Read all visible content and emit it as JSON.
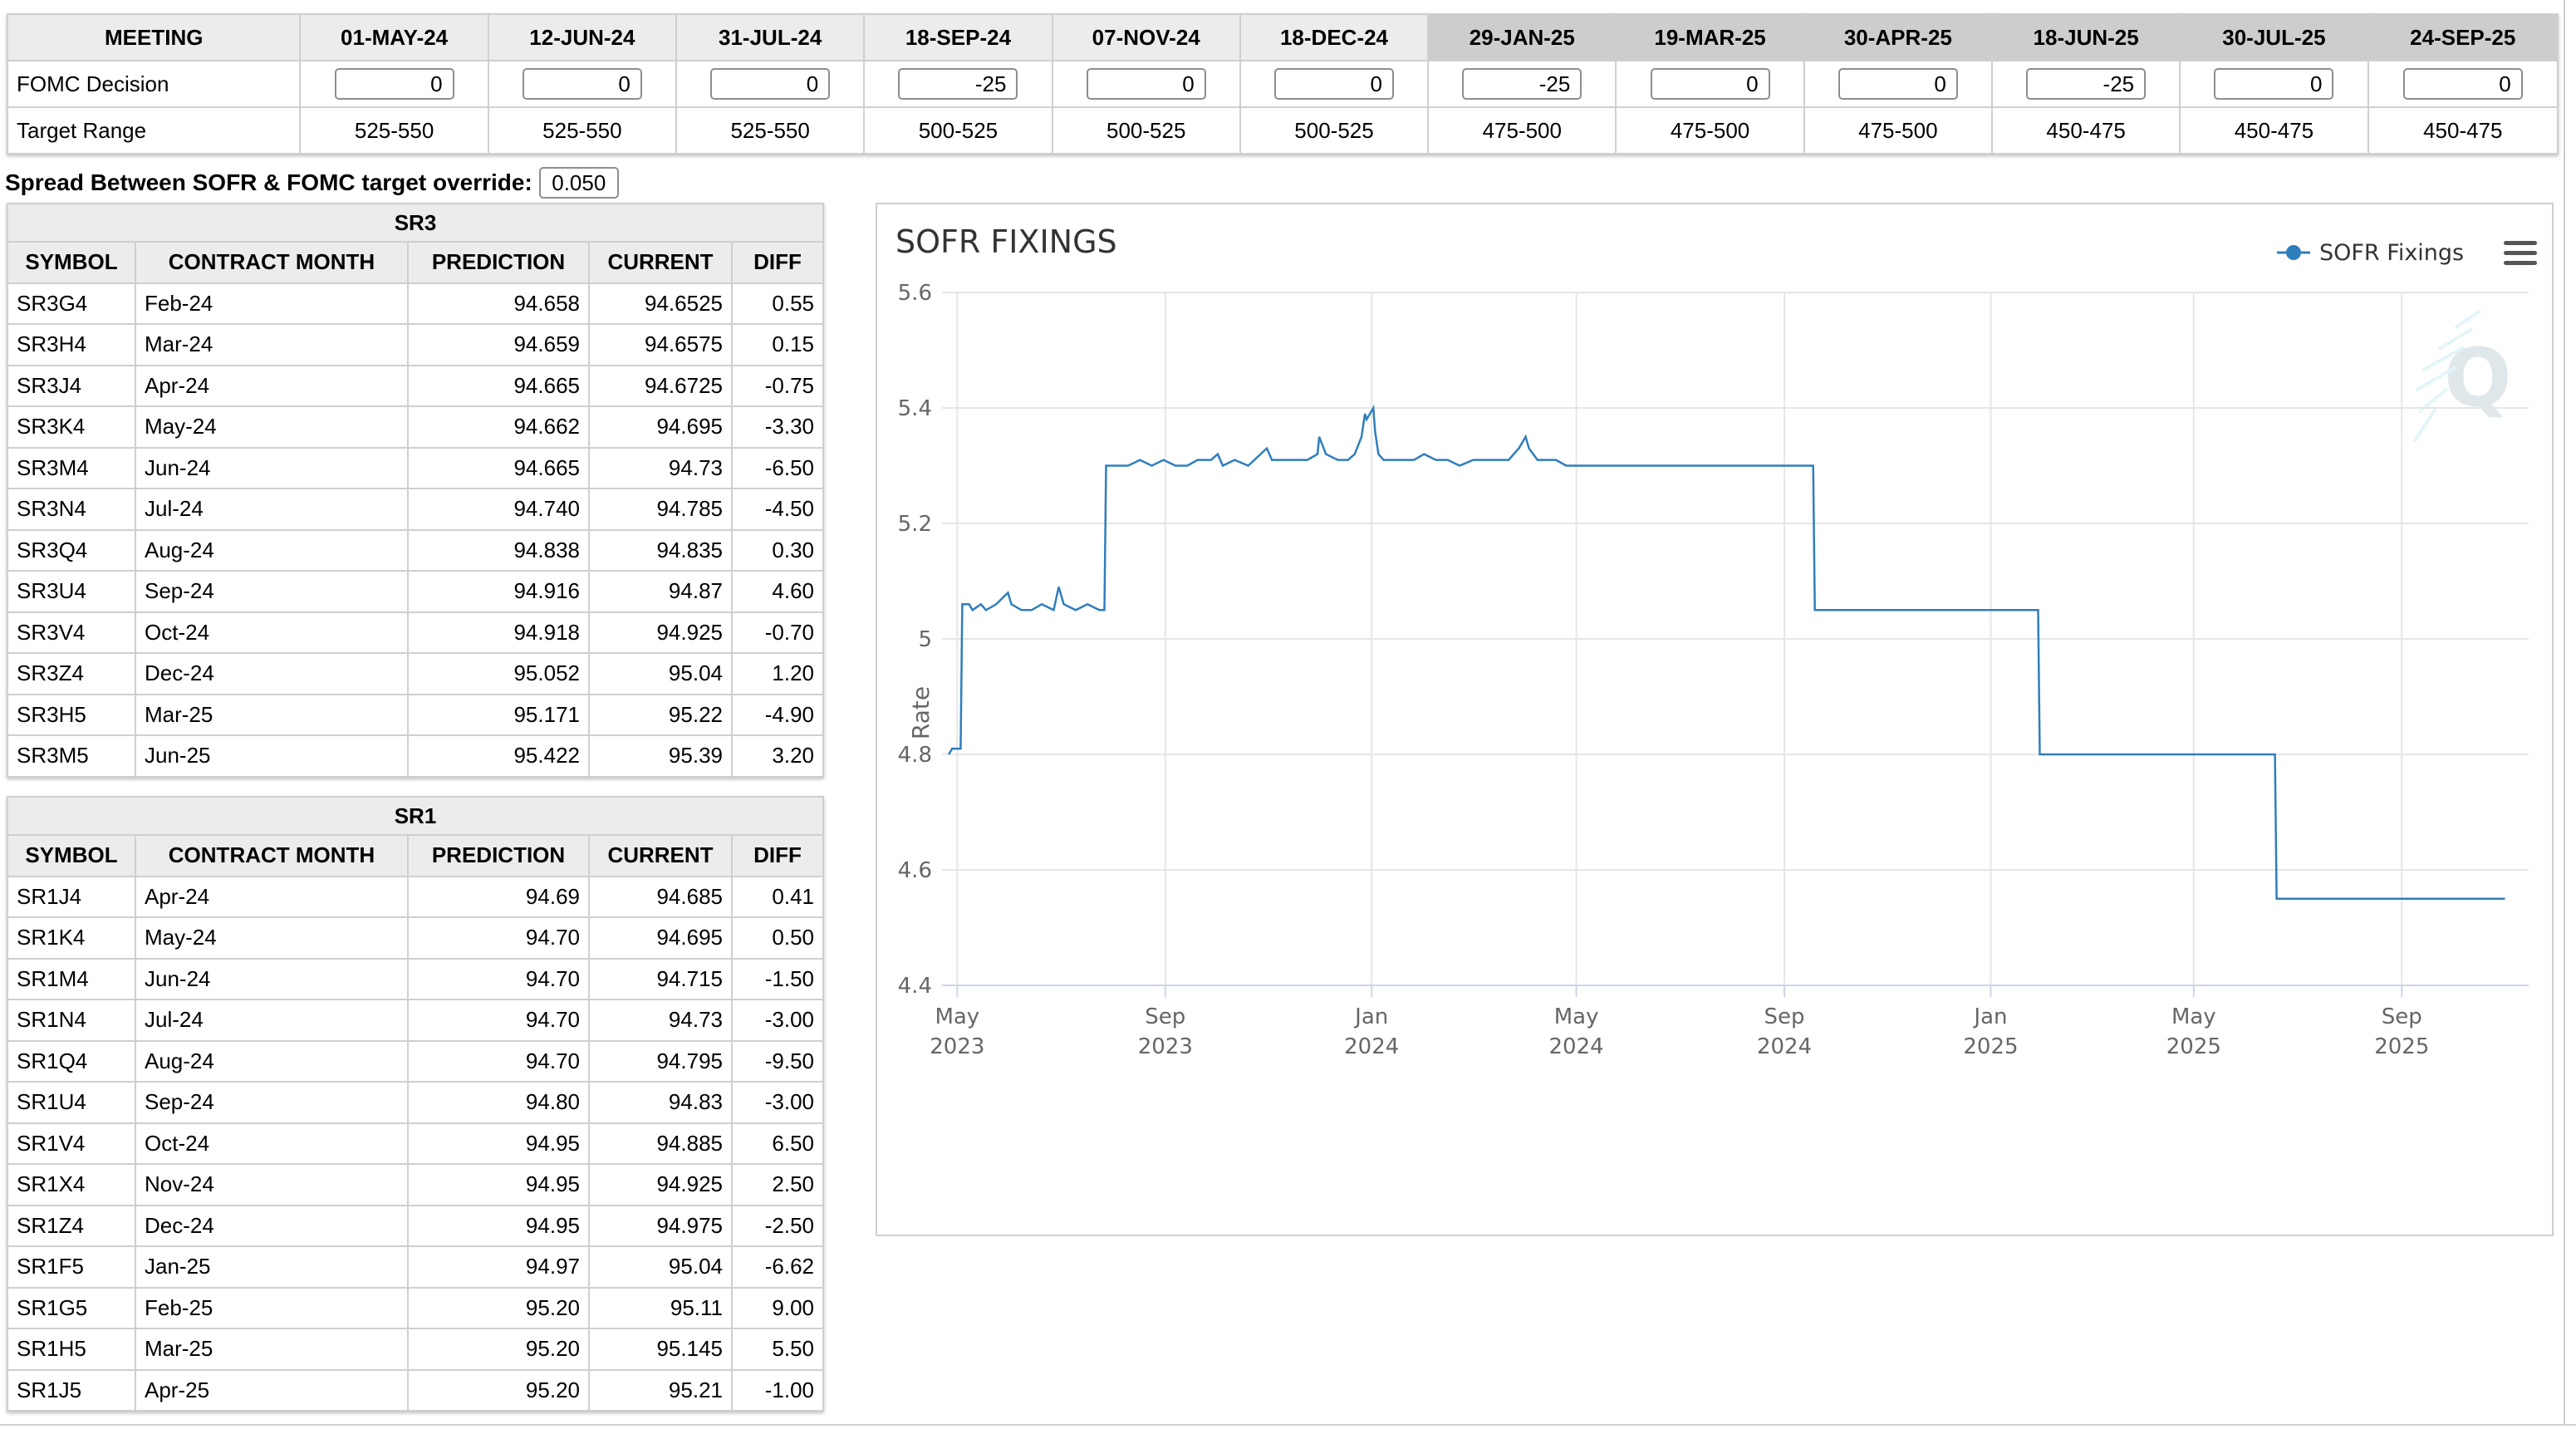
{
  "fomc": {
    "header_label": "MEETING",
    "decision_label": "FOMC Decision",
    "range_label": "Target Range",
    "meetings": [
      {
        "date": "01-MAY-24",
        "decision": "0",
        "range": "525-550",
        "future": false
      },
      {
        "date": "12-JUN-24",
        "decision": "0",
        "range": "525-550",
        "future": false
      },
      {
        "date": "31-JUL-24",
        "decision": "0",
        "range": "525-550",
        "future": false
      },
      {
        "date": "18-SEP-24",
        "decision": "-25",
        "range": "500-525",
        "future": false
      },
      {
        "date": "07-NOV-24",
        "decision": "0",
        "range": "500-525",
        "future": false
      },
      {
        "date": "18-DEC-24",
        "decision": "0",
        "range": "500-525",
        "future": false
      },
      {
        "date": "29-JAN-25",
        "decision": "-25",
        "range": "475-500",
        "future": true
      },
      {
        "date": "19-MAR-25",
        "decision": "0",
        "range": "475-500",
        "future": true
      },
      {
        "date": "30-APR-25",
        "decision": "0",
        "range": "475-500",
        "future": true
      },
      {
        "date": "18-JUN-25",
        "decision": "-25",
        "range": "450-475",
        "future": true
      },
      {
        "date": "30-JUL-25",
        "decision": "0",
        "range": "450-475",
        "future": true
      },
      {
        "date": "24-SEP-25",
        "decision": "0",
        "range": "450-475",
        "future": true
      }
    ]
  },
  "spread": {
    "label": "Spread Between SOFR & FOMC target override:",
    "value": "0.050"
  },
  "columns": [
    "SYMBOL",
    "CONTRACT MONTH",
    "PREDICTION",
    "CURRENT",
    "DIFF"
  ],
  "sr3": {
    "title": "SR3",
    "rows": [
      [
        "SR3G4",
        "Feb-24",
        "94.658",
        "94.6525",
        "0.55"
      ],
      [
        "SR3H4",
        "Mar-24",
        "94.659",
        "94.6575",
        "0.15"
      ],
      [
        "SR3J4",
        "Apr-24",
        "94.665",
        "94.6725",
        "-0.75"
      ],
      [
        "SR3K4",
        "May-24",
        "94.662",
        "94.695",
        "-3.30"
      ],
      [
        "SR3M4",
        "Jun-24",
        "94.665",
        "94.73",
        "-6.50"
      ],
      [
        "SR3N4",
        "Jul-24",
        "94.740",
        "94.785",
        "-4.50"
      ],
      [
        "SR3Q4",
        "Aug-24",
        "94.838",
        "94.835",
        "0.30"
      ],
      [
        "SR3U4",
        "Sep-24",
        "94.916",
        "94.87",
        "4.60"
      ],
      [
        "SR3V4",
        "Oct-24",
        "94.918",
        "94.925",
        "-0.70"
      ],
      [
        "SR3Z4",
        "Dec-24",
        "95.052",
        "95.04",
        "1.20"
      ],
      [
        "SR3H5",
        "Mar-25",
        "95.171",
        "95.22",
        "-4.90"
      ],
      [
        "SR3M5",
        "Jun-25",
        "95.422",
        "95.39",
        "3.20"
      ]
    ]
  },
  "sr1": {
    "title": "SR1",
    "rows": [
      [
        "SR1J4",
        "Apr-24",
        "94.69",
        "94.685",
        "0.41"
      ],
      [
        "SR1K4",
        "May-24",
        "94.70",
        "94.695",
        "0.50"
      ],
      [
        "SR1M4",
        "Jun-24",
        "94.70",
        "94.715",
        "-1.50"
      ],
      [
        "SR1N4",
        "Jul-24",
        "94.70",
        "94.73",
        "-3.00"
      ],
      [
        "SR1Q4",
        "Aug-24",
        "94.70",
        "94.795",
        "-9.50"
      ],
      [
        "SR1U4",
        "Sep-24",
        "94.80",
        "94.83",
        "-3.00"
      ],
      [
        "SR1V4",
        "Oct-24",
        "94.95",
        "94.885",
        "6.50"
      ],
      [
        "SR1X4",
        "Nov-24",
        "94.95",
        "94.925",
        "2.50"
      ],
      [
        "SR1Z4",
        "Dec-24",
        "94.95",
        "94.975",
        "-2.50"
      ],
      [
        "SR1F5",
        "Jan-25",
        "94.97",
        "95.04",
        "-6.62"
      ],
      [
        "SR1G5",
        "Feb-25",
        "95.20",
        "95.11",
        "9.00"
      ],
      [
        "SR1H5",
        "Mar-25",
        "95.20",
        "95.145",
        "5.50"
      ],
      [
        "SR1J5",
        "Apr-25",
        "95.20",
        "95.21",
        "-1.00"
      ]
    ]
  },
  "chart_data": {
    "type": "line",
    "title": "SOFR FIXINGS",
    "ylabel": "Rate",
    "xlabel": "",
    "ylim": [
      4.4,
      5.6
    ],
    "yticks": [
      "4.4",
      "4.6",
      "4.8",
      "5",
      "5.2",
      "5.4",
      "5.6"
    ],
    "xlim": [
      "2023-04-22",
      "2025-11-15"
    ],
    "xticks": [
      {
        "date": "2023-05-01",
        "line1": "May",
        "line2": "2023"
      },
      {
        "date": "2023-09-01",
        "line1": "Sep",
        "line2": "2023"
      },
      {
        "date": "2024-01-01",
        "line1": "Jan",
        "line2": "2024"
      },
      {
        "date": "2024-05-01",
        "line1": "May",
        "line2": "2024"
      },
      {
        "date": "2024-09-01",
        "line1": "Sep",
        "line2": "2024"
      },
      {
        "date": "2025-01-01",
        "line1": "Jan",
        "line2": "2025"
      },
      {
        "date": "2025-05-01",
        "line1": "May",
        "line2": "2025"
      },
      {
        "date": "2025-09-01",
        "line1": "Sep",
        "line2": "2025"
      }
    ],
    "legend": {
      "position": "top-right",
      "label": "SOFR Fixings"
    },
    "grid": true,
    "line_color": "#2f7ebc",
    "series": [
      {
        "name": "SOFR Fixings",
        "points": [
          [
            "2023-04-26",
            4.8
          ],
          [
            "2023-04-28",
            4.81
          ],
          [
            "2023-05-03",
            4.81
          ],
          [
            "2023-05-04",
            5.06
          ],
          [
            "2023-05-08",
            5.06
          ],
          [
            "2023-05-10",
            5.05
          ],
          [
            "2023-05-15",
            5.06
          ],
          [
            "2023-05-18",
            5.05
          ],
          [
            "2023-05-24",
            5.06
          ],
          [
            "2023-05-31",
            5.08
          ],
          [
            "2023-06-02",
            5.06
          ],
          [
            "2023-06-08",
            5.05
          ],
          [
            "2023-06-14",
            5.05
          ],
          [
            "2023-06-20",
            5.06
          ],
          [
            "2023-06-27",
            5.05
          ],
          [
            "2023-06-30",
            5.09
          ],
          [
            "2023-07-03",
            5.06
          ],
          [
            "2023-07-10",
            5.05
          ],
          [
            "2023-07-17",
            5.06
          ],
          [
            "2023-07-24",
            5.05
          ],
          [
            "2023-07-27",
            5.05
          ],
          [
            "2023-07-28",
            5.3
          ],
          [
            "2023-08-10",
            5.3
          ],
          [
            "2023-08-17",
            5.31
          ],
          [
            "2023-08-24",
            5.3
          ],
          [
            "2023-08-31",
            5.31
          ],
          [
            "2023-09-07",
            5.3
          ],
          [
            "2023-09-14",
            5.3
          ],
          [
            "2023-09-20",
            5.31
          ],
          [
            "2023-09-28",
            5.31
          ],
          [
            "2023-10-02",
            5.32
          ],
          [
            "2023-10-05",
            5.3
          ],
          [
            "2023-10-12",
            5.31
          ],
          [
            "2023-10-20",
            5.3
          ],
          [
            "2023-10-31",
            5.33
          ],
          [
            "2023-11-03",
            5.31
          ],
          [
            "2023-11-10",
            5.31
          ],
          [
            "2023-11-17",
            5.31
          ],
          [
            "2023-11-24",
            5.31
          ],
          [
            "2023-11-30",
            5.32
          ],
          [
            "2023-12-01",
            5.35
          ],
          [
            "2023-12-05",
            5.32
          ],
          [
            "2023-12-12",
            5.31
          ],
          [
            "2023-12-18",
            5.31
          ],
          [
            "2023-12-22",
            5.32
          ],
          [
            "2023-12-26",
            5.35
          ],
          [
            "2023-12-28",
            5.39
          ],
          [
            "2023-12-29",
            5.38
          ],
          [
            "2024-01-02",
            5.4
          ],
          [
            "2024-01-03",
            5.36
          ],
          [
            "2024-01-05",
            5.32
          ],
          [
            "2024-01-08",
            5.31
          ],
          [
            "2024-01-12",
            5.31
          ],
          [
            "2024-01-19",
            5.31
          ],
          [
            "2024-01-26",
            5.31
          ],
          [
            "2024-02-01",
            5.32
          ],
          [
            "2024-02-08",
            5.31
          ],
          [
            "2024-02-15",
            5.31
          ],
          [
            "2024-02-22",
            5.3
          ],
          [
            "2024-03-01",
            5.31
          ],
          [
            "2024-03-08",
            5.31
          ],
          [
            "2024-03-15",
            5.31
          ],
          [
            "2024-03-22",
            5.31
          ],
          [
            "2024-03-28",
            5.33
          ],
          [
            "2024-04-01",
            5.35
          ],
          [
            "2024-04-03",
            5.33
          ],
          [
            "2024-04-08",
            5.31
          ],
          [
            "2024-04-12",
            5.31
          ],
          [
            "2024-04-19",
            5.31
          ],
          [
            "2024-04-25",
            5.3
          ],
          [
            "2024-04-30",
            5.3
          ],
          [
            "2024-09-18",
            5.3
          ],
          [
            "2024-09-19",
            5.05
          ],
          [
            "2025-01-29",
            5.05
          ],
          [
            "2025-01-30",
            4.8
          ],
          [
            "2025-06-18",
            4.8
          ],
          [
            "2025-06-19",
            4.55
          ],
          [
            "2025-11-01",
            4.55
          ]
        ]
      }
    ]
  }
}
